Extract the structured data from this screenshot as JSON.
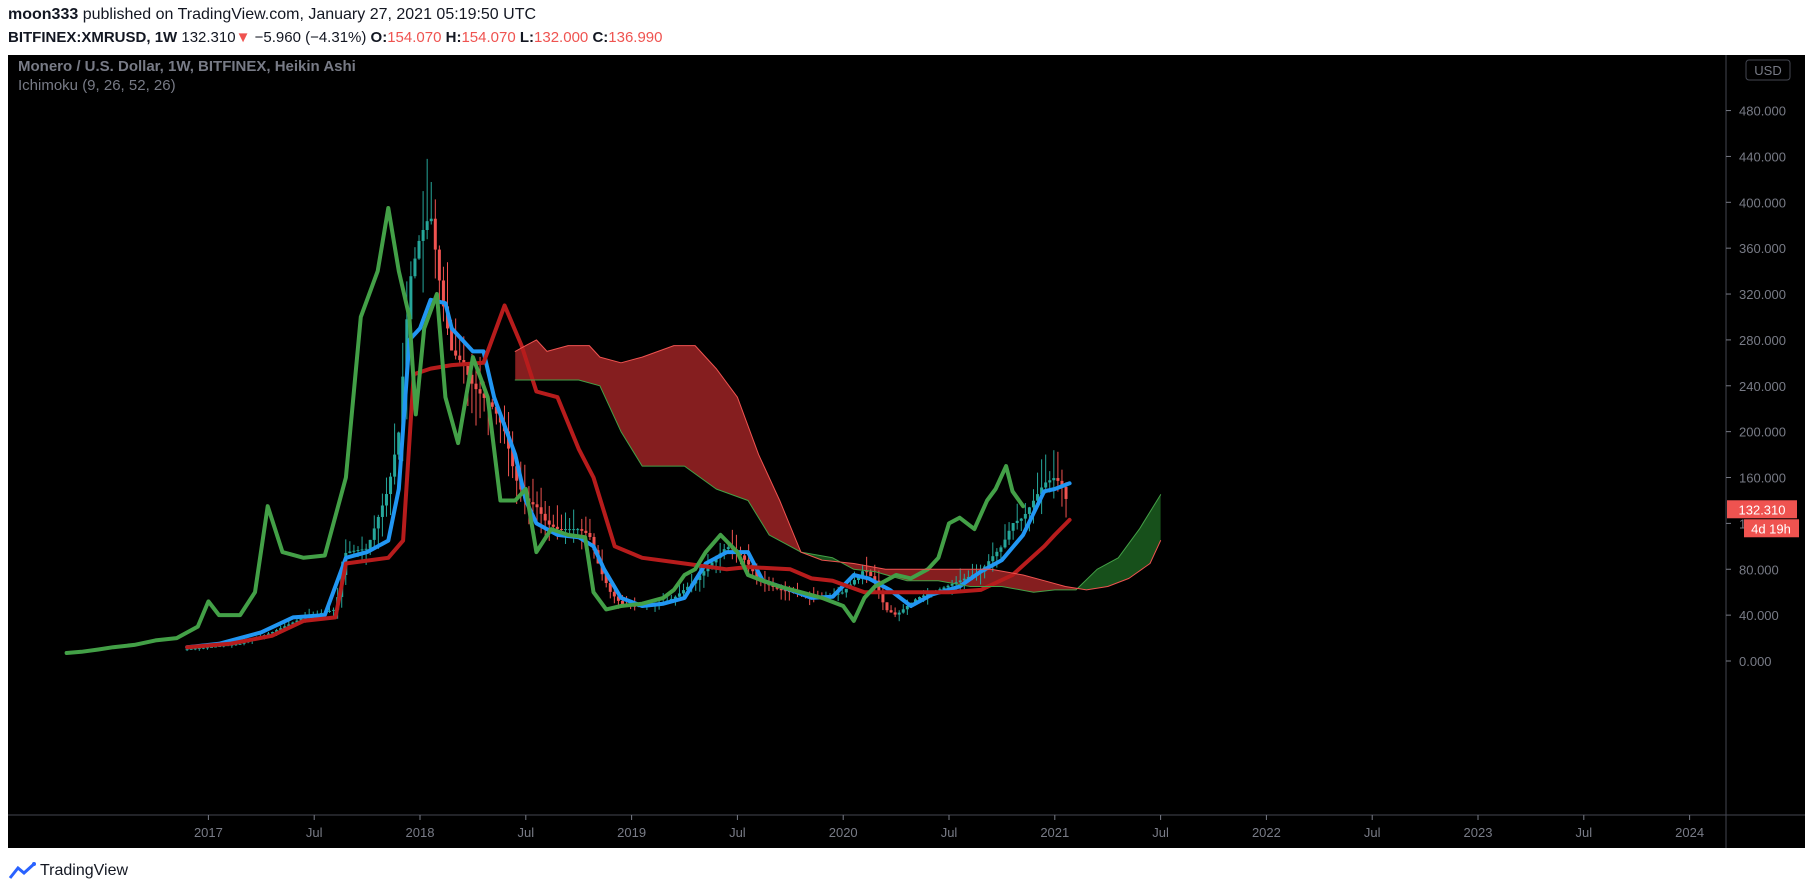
{
  "header": {
    "publisher": "moon333",
    "published_text": "published on TradingView.com, January 27, 2021 05:19:50 UTC",
    "symbol": "BITFINEX:XMRUSD",
    "interval": "1W",
    "last": "132.310",
    "change": "−5.960 (−4.31%)",
    "o_label": "O:",
    "o_value": "154.070",
    "h_label": "H:",
    "h_value": "154.070",
    "l_label": "L:",
    "l_value": "132.000",
    "c_label": "C:",
    "c_value": "136.990"
  },
  "legend": {
    "title": "Monero / U.S. Dollar, 1W, BITFINEX, Heikin Ashi",
    "indicator": "Ichimoku (9, 26, 52, 26)"
  },
  "currency_label": "USD",
  "price_label": "132.310",
  "countdown_label": "4d 19h",
  "footer": {
    "brand": "TradingView",
    "icon": "tradingview-logo-icon"
  },
  "colors": {
    "background": "#000000",
    "up": "#26a69a",
    "down": "#ef5350",
    "conversion_line": "#2196f3",
    "base_line": "#b71c1c",
    "lagging_span": "#43a047",
    "cloud_bull": "#1b5e20",
    "cloud_bear": "#b2282a"
  },
  "chart_data": {
    "type": "candlestick",
    "style": "Heikin Ashi",
    "ylim": [
      -20,
      520
    ],
    "yticks": [
      0,
      40,
      80,
      120,
      160,
      200,
      240,
      280,
      320,
      360,
      400,
      440,
      480
    ],
    "ytick_labels": [
      "0.000",
      "40.000",
      "80.000",
      "120.000",
      "160.000",
      "200.000",
      "240.000",
      "280.000",
      "320.000",
      "360.000",
      "400.000",
      "440.000",
      "480.000"
    ],
    "xrange": [
      2016.06,
      2024.46
    ],
    "xticks": [
      {
        "t": 2017.0,
        "label": "2017"
      },
      {
        "t": 2017.5,
        "label": "Jul"
      },
      {
        "t": 2018.0,
        "label": "2018"
      },
      {
        "t": 2018.5,
        "label": "Jul"
      },
      {
        "t": 2019.0,
        "label": "2019"
      },
      {
        "t": 2019.5,
        "label": "Jul"
      },
      {
        "t": 2020.0,
        "label": "2020"
      },
      {
        "t": 2020.5,
        "label": "Jul"
      },
      {
        "t": 2021.0,
        "label": "2021"
      },
      {
        "t": 2021.5,
        "label": "Jul"
      },
      {
        "t": 2022.0,
        "label": "2022"
      },
      {
        "t": 2022.5,
        "label": "Jul"
      },
      {
        "t": 2023.0,
        "label": "2023"
      },
      {
        "t": 2023.5,
        "label": "Jul"
      },
      {
        "t": 2024.0,
        "label": "2024"
      }
    ],
    "price_path": [
      [
        2016.88,
        10
      ],
      [
        2017.0,
        12
      ],
      [
        2017.15,
        15
      ],
      [
        2017.3,
        25
      ],
      [
        2017.45,
        38
      ],
      [
        2017.6,
        45
      ],
      [
        2017.65,
        95
      ],
      [
        2017.75,
        98
      ],
      [
        2017.85,
        150
      ],
      [
        2017.9,
        200
      ],
      [
        2017.95,
        330
      ],
      [
        2018.0,
        370
      ],
      [
        2018.05,
        390
      ],
      [
        2018.1,
        320
      ],
      [
        2018.15,
        270
      ],
      [
        2018.2,
        260
      ],
      [
        2018.25,
        240
      ],
      [
        2018.3,
        230
      ],
      [
        2018.35,
        220
      ],
      [
        2018.4,
        200
      ],
      [
        2018.45,
        160
      ],
      [
        2018.5,
        140
      ],
      [
        2018.55,
        135
      ],
      [
        2018.6,
        120
      ],
      [
        2018.65,
        115
      ],
      [
        2018.7,
        115
      ],
      [
        2018.75,
        115
      ],
      [
        2018.8,
        110
      ],
      [
        2018.85,
        80
      ],
      [
        2018.9,
        60
      ],
      [
        2018.95,
        50
      ],
      [
        2019.0,
        48
      ],
      [
        2019.1,
        48
      ],
      [
        2019.2,
        55
      ],
      [
        2019.3,
        70
      ],
      [
        2019.4,
        90
      ],
      [
        2019.45,
        100
      ],
      [
        2019.5,
        95
      ],
      [
        2019.55,
        85
      ],
      [
        2019.6,
        70
      ],
      [
        2019.7,
        62
      ],
      [
        2019.8,
        58
      ],
      [
        2019.9,
        55
      ],
      [
        2020.0,
        60
      ],
      [
        2020.1,
        80
      ],
      [
        2020.15,
        70
      ],
      [
        2020.2,
        45
      ],
      [
        2020.25,
        40
      ],
      [
        2020.35,
        55
      ],
      [
        2020.45,
        62
      ],
      [
        2020.55,
        70
      ],
      [
        2020.65,
        78
      ],
      [
        2020.7,
        90
      ],
      [
        2020.75,
        100
      ],
      [
        2020.8,
        120
      ],
      [
        2020.85,
        125
      ],
      [
        2020.9,
        140
      ],
      [
        2020.95,
        155
      ],
      [
        2021.0,
        160
      ],
      [
        2021.03,
        154
      ],
      [
        2021.07,
        132
      ]
    ],
    "series": [
      {
        "name": "Conversion Line",
        "points": [
          [
            2016.9,
            12
          ],
          [
            2017.05,
            15
          ],
          [
            2017.25,
            25
          ],
          [
            2017.4,
            38
          ],
          [
            2017.55,
            40
          ],
          [
            2017.65,
            90
          ],
          [
            2017.75,
            95
          ],
          [
            2017.85,
            105
          ],
          [
            2017.9,
            150
          ],
          [
            2017.95,
            280
          ],
          [
            2018.0,
            290
          ],
          [
            2018.05,
            315
          ],
          [
            2018.12,
            312
          ],
          [
            2018.15,
            290
          ],
          [
            2018.25,
            270
          ],
          [
            2018.3,
            270
          ],
          [
            2018.35,
            230
          ],
          [
            2018.45,
            180
          ],
          [
            2018.5,
            140
          ],
          [
            2018.55,
            120
          ],
          [
            2018.65,
            110
          ],
          [
            2018.75,
            108
          ],
          [
            2018.82,
            100
          ],
          [
            2018.87,
            80
          ],
          [
            2018.95,
            55
          ],
          [
            2019.05,
            48
          ],
          [
            2019.15,
            50
          ],
          [
            2019.25,
            55
          ],
          [
            2019.35,
            85
          ],
          [
            2019.45,
            95
          ],
          [
            2019.55,
            95
          ],
          [
            2019.62,
            70
          ],
          [
            2019.75,
            62
          ],
          [
            2019.85,
            55
          ],
          [
            2019.95,
            56
          ],
          [
            2020.05,
            75
          ],
          [
            2020.12,
            72
          ],
          [
            2020.22,
            62
          ],
          [
            2020.32,
            48
          ],
          [
            2020.42,
            58
          ],
          [
            2020.55,
            65
          ],
          [
            2020.65,
            78
          ],
          [
            2020.75,
            88
          ],
          [
            2020.85,
            110
          ],
          [
            2020.95,
            148
          ],
          [
            2021.0,
            150
          ],
          [
            2021.07,
            155
          ]
        ]
      },
      {
        "name": "Base Line",
        "points": [
          [
            2016.9,
            12
          ],
          [
            2017.1,
            15
          ],
          [
            2017.3,
            22
          ],
          [
            2017.45,
            35
          ],
          [
            2017.6,
            38
          ],
          [
            2017.65,
            85
          ],
          [
            2017.85,
            90
          ],
          [
            2017.92,
            105
          ],
          [
            2017.97,
            250
          ],
          [
            2018.05,
            255
          ],
          [
            2018.15,
            258
          ],
          [
            2018.3,
            260
          ],
          [
            2018.4,
            310
          ],
          [
            2018.48,
            275
          ],
          [
            2018.55,
            235
          ],
          [
            2018.65,
            230
          ],
          [
            2018.75,
            185
          ],
          [
            2018.82,
            160
          ],
          [
            2018.87,
            130
          ],
          [
            2018.92,
            100
          ],
          [
            2019.05,
            90
          ],
          [
            2019.25,
            85
          ],
          [
            2019.45,
            80
          ],
          [
            2019.55,
            82
          ],
          [
            2019.75,
            80
          ],
          [
            2019.85,
            72
          ],
          [
            2019.95,
            70
          ],
          [
            2020.1,
            60
          ],
          [
            2020.3,
            60
          ],
          [
            2020.5,
            60
          ],
          [
            2020.65,
            62
          ],
          [
            2020.8,
            75
          ],
          [
            2020.95,
            100
          ],
          [
            2021.0,
            110
          ],
          [
            2021.07,
            123
          ]
        ]
      },
      {
        "name": "Lagging Span",
        "points": [
          [
            2016.33,
            7
          ],
          [
            2016.4,
            8
          ],
          [
            2016.48,
            10
          ],
          [
            2016.55,
            12
          ],
          [
            2016.65,
            14
          ],
          [
            2016.75,
            18
          ],
          [
            2016.85,
            20
          ],
          [
            2016.95,
            30
          ],
          [
            2017.0,
            52
          ],
          [
            2017.05,
            40
          ],
          [
            2017.15,
            40
          ],
          [
            2017.22,
            60
          ],
          [
            2017.28,
            135
          ],
          [
            2017.35,
            95
          ],
          [
            2017.45,
            90
          ],
          [
            2017.55,
            92
          ],
          [
            2017.65,
            160
          ],
          [
            2017.72,
            300
          ],
          [
            2017.8,
            340
          ],
          [
            2017.85,
            395
          ],
          [
            2017.9,
            340
          ],
          [
            2017.95,
            300
          ],
          [
            2017.98,
            215
          ],
          [
            2018.02,
            290
          ],
          [
            2018.08,
            320
          ],
          [
            2018.12,
            230
          ],
          [
            2018.18,
            190
          ],
          [
            2018.25,
            265
          ],
          [
            2018.32,
            230
          ],
          [
            2018.38,
            140
          ],
          [
            2018.45,
            140
          ],
          [
            2018.5,
            150
          ],
          [
            2018.55,
            95
          ],
          [
            2018.62,
            115
          ],
          [
            2018.7,
            110
          ],
          [
            2018.78,
            108
          ],
          [
            2018.82,
            60
          ],
          [
            2018.88,
            45
          ],
          [
            2018.95,
            48
          ],
          [
            2019.05,
            50
          ],
          [
            2019.15,
            55
          ],
          [
            2019.2,
            62
          ],
          [
            2019.25,
            75
          ],
          [
            2019.3,
            80
          ],
          [
            2019.35,
            95
          ],
          [
            2019.42,
            110
          ],
          [
            2019.5,
            95
          ],
          [
            2019.55,
            75
          ],
          [
            2019.62,
            70
          ],
          [
            2019.7,
            65
          ],
          [
            2019.8,
            60
          ],
          [
            2019.9,
            55
          ],
          [
            2020.0,
            48
          ],
          [
            2020.05,
            35
          ],
          [
            2020.1,
            55
          ],
          [
            2020.15,
            65
          ],
          [
            2020.25,
            75
          ],
          [
            2020.32,
            72
          ],
          [
            2020.4,
            80
          ],
          [
            2020.45,
            90
          ],
          [
            2020.5,
            120
          ],
          [
            2020.55,
            125
          ],
          [
            2020.62,
            115
          ],
          [
            2020.68,
            140
          ],
          [
            2020.72,
            150
          ],
          [
            2020.77,
            170
          ],
          [
            2020.8,
            148
          ],
          [
            2020.85,
            135
          ]
        ]
      },
      {
        "name": "Leading Span A",
        "points": [
          [
            2018.45,
            245
          ],
          [
            2018.5,
            245
          ],
          [
            2018.6,
            245
          ],
          [
            2018.75,
            245
          ],
          [
            2018.85,
            240
          ],
          [
            2018.95,
            200
          ],
          [
            2019.05,
            170
          ],
          [
            2019.25,
            170
          ],
          [
            2019.4,
            150
          ],
          [
            2019.55,
            140
          ],
          [
            2019.65,
            110
          ],
          [
            2019.8,
            95
          ],
          [
            2019.95,
            90
          ],
          [
            2020.05,
            80
          ],
          [
            2020.15,
            78
          ],
          [
            2020.3,
            70
          ],
          [
            2020.45,
            70
          ],
          [
            2020.6,
            65
          ],
          [
            2020.75,
            65
          ],
          [
            2020.9,
            60
          ],
          [
            2021.0,
            62
          ],
          [
            2021.1,
            62
          ],
          [
            2021.2,
            80
          ],
          [
            2021.3,
            90
          ],
          [
            2021.4,
            115
          ],
          [
            2021.5,
            145
          ]
        ]
      },
      {
        "name": "Leading Span B",
        "points": [
          [
            2018.45,
            270
          ],
          [
            2018.5,
            275
          ],
          [
            2018.55,
            280
          ],
          [
            2018.6,
            270
          ],
          [
            2018.7,
            275
          ],
          [
            2018.8,
            275
          ],
          [
            2018.85,
            265
          ],
          [
            2018.95,
            260
          ],
          [
            2019.05,
            265
          ],
          [
            2019.2,
            275
          ],
          [
            2019.3,
            275
          ],
          [
            2019.4,
            255
          ],
          [
            2019.5,
            230
          ],
          [
            2019.6,
            180
          ],
          [
            2019.7,
            140
          ],
          [
            2019.8,
            95
          ],
          [
            2019.9,
            88
          ],
          [
            2020.05,
            85
          ],
          [
            2020.2,
            80
          ],
          [
            2020.35,
            80
          ],
          [
            2020.55,
            80
          ],
          [
            2020.7,
            80
          ],
          [
            2020.85,
            75
          ],
          [
            2020.95,
            70
          ],
          [
            2021.05,
            65
          ],
          [
            2021.15,
            62
          ],
          [
            2021.25,
            65
          ],
          [
            2021.35,
            72
          ],
          [
            2021.45,
            85
          ],
          [
            2021.5,
            105
          ]
        ]
      }
    ]
  }
}
